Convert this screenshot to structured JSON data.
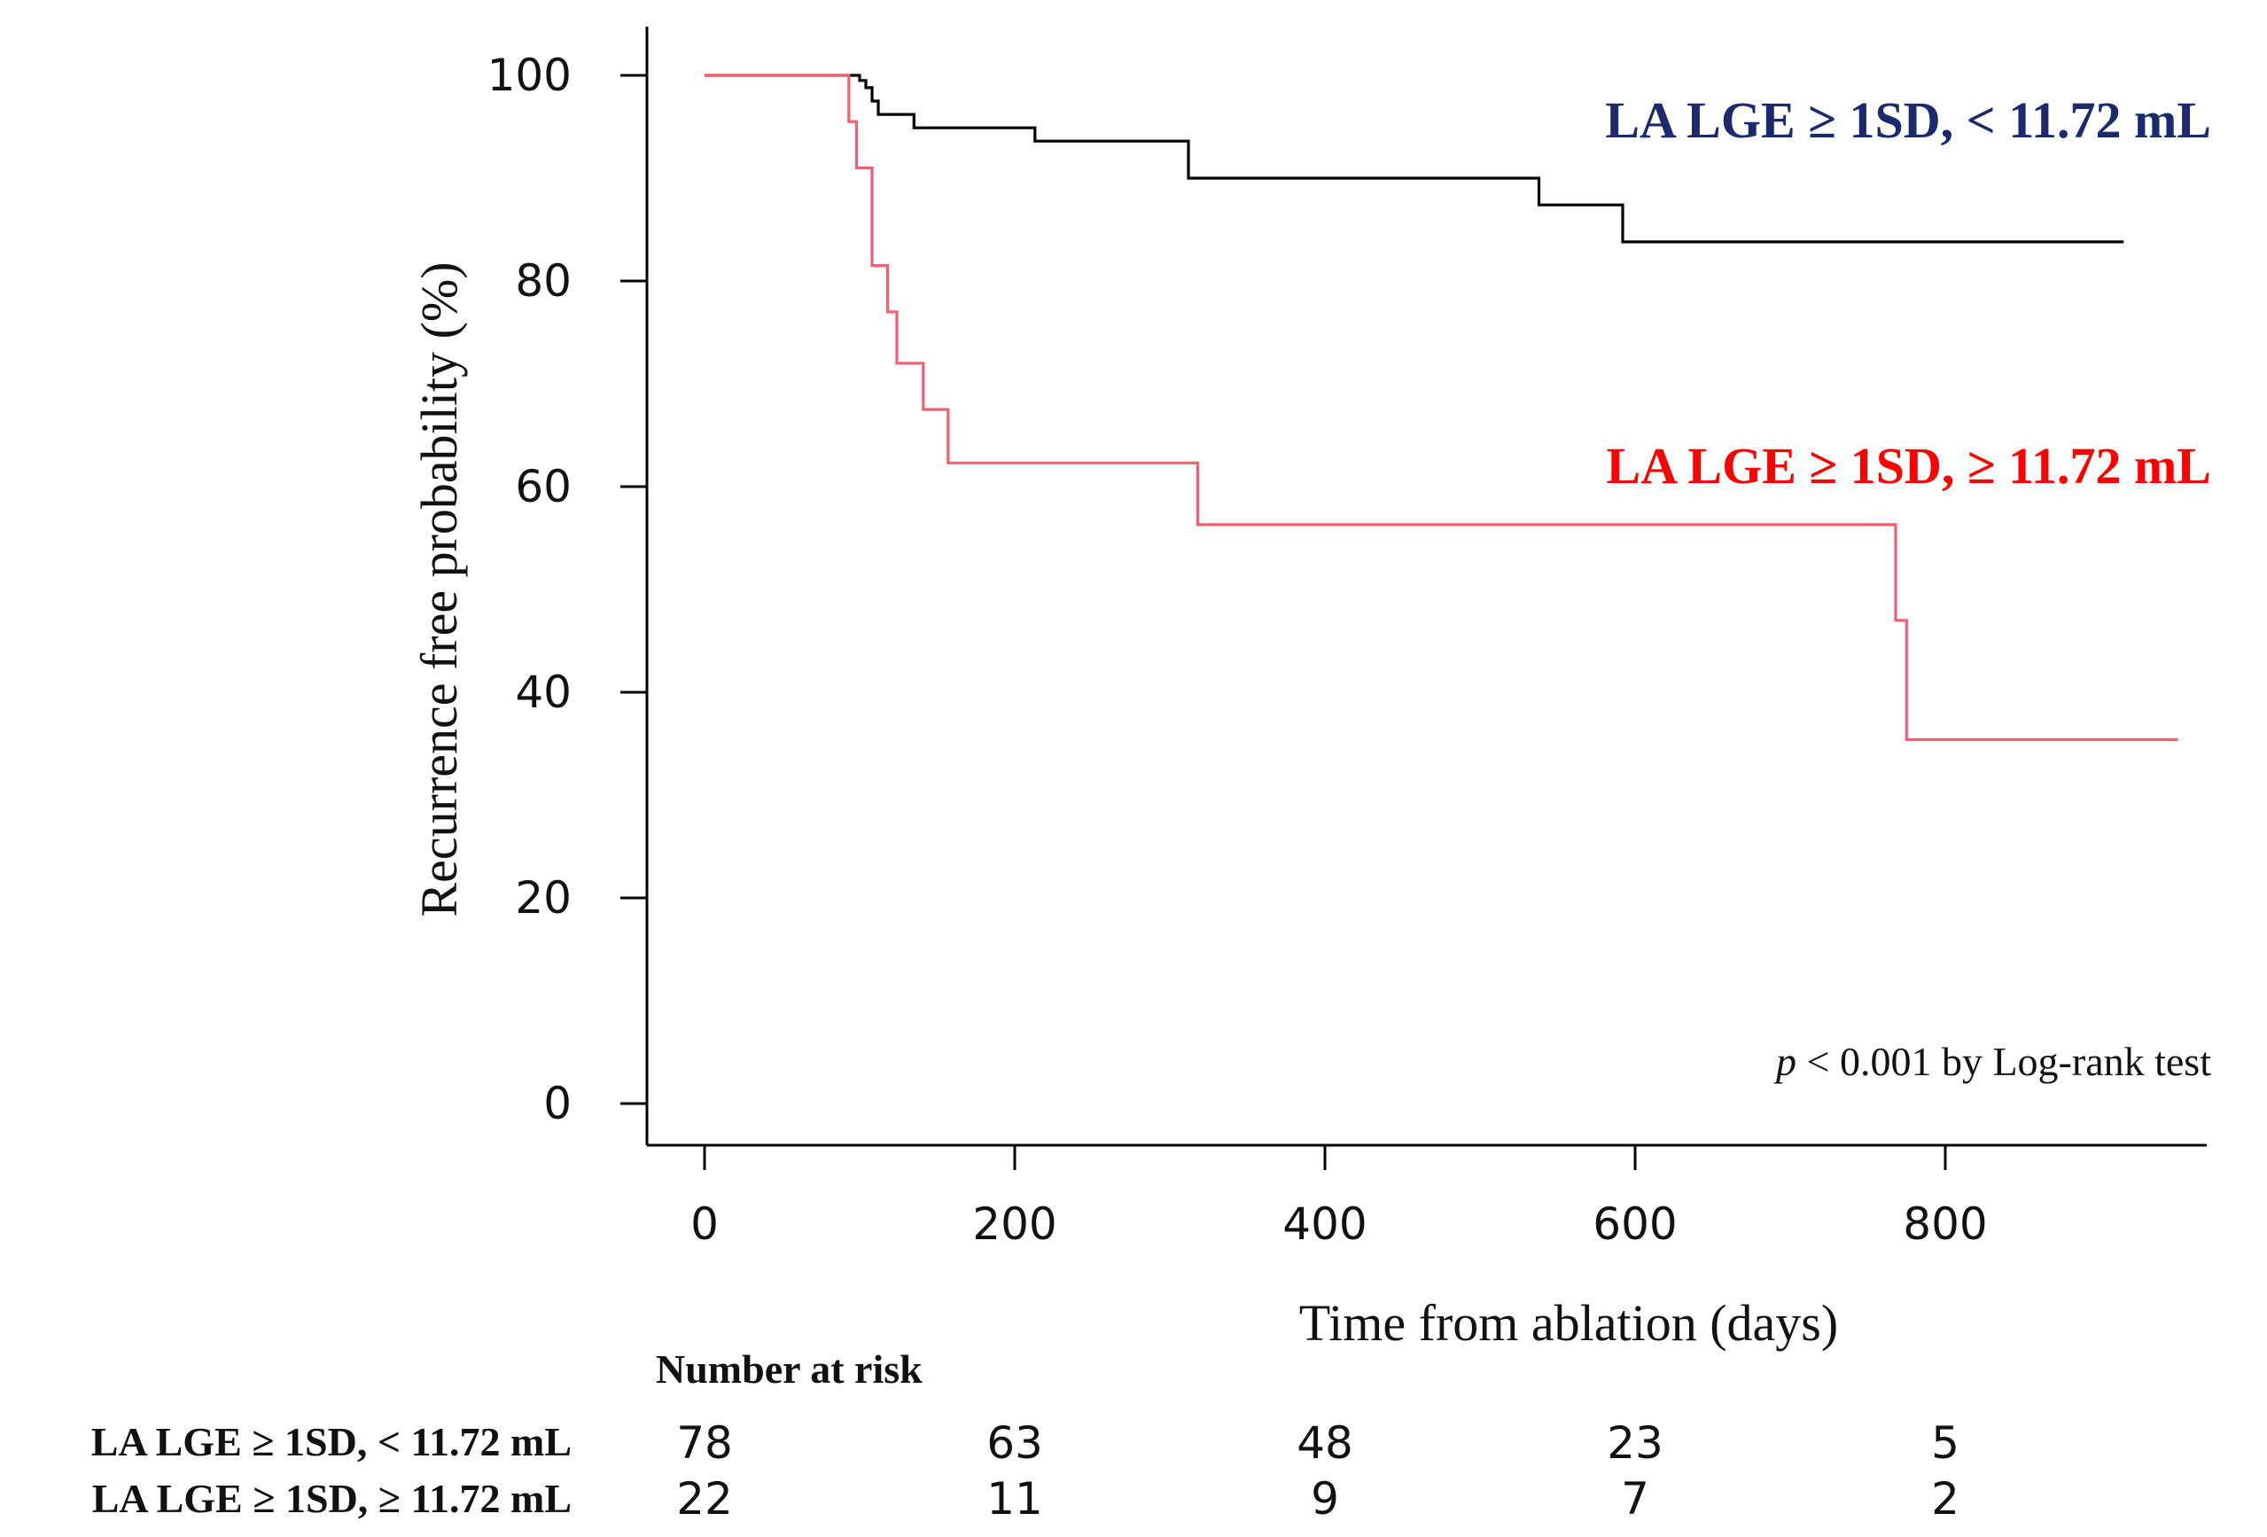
{
  "chart_data": {
    "type": "line",
    "subtype": "kaplan-meier",
    "title": "",
    "xlabel": "Time from ablation (days)",
    "ylabel": "Recurrence free probability (%)",
    "xlim": [
      0,
      950
    ],
    "ylim": [
      0,
      100
    ],
    "xticks": [
      0,
      200,
      400,
      600,
      800
    ],
    "yticks": [
      0,
      20,
      40,
      60,
      80,
      100
    ],
    "grid": false,
    "series": [
      {
        "name": "LA LGE ≥ 1SD, < 11.72 mL",
        "color": "#000000",
        "label_color": "#1a2a6c",
        "steps": [
          [
            0,
            100
          ],
          [
            100,
            100
          ],
          [
            100,
            99.5
          ],
          [
            104,
            99.5
          ],
          [
            104,
            98.8
          ],
          [
            108,
            98.8
          ],
          [
            108,
            97.5
          ],
          [
            112,
            97.5
          ],
          [
            112,
            96.2
          ],
          [
            135,
            96.2
          ],
          [
            135,
            94.9
          ],
          [
            213,
            94.9
          ],
          [
            213,
            93.6
          ],
          [
            312,
            93.6
          ],
          [
            312,
            90.0
          ],
          [
            538,
            90.0
          ],
          [
            538,
            87.4
          ],
          [
            592,
            87.4
          ],
          [
            592,
            83.8
          ],
          [
            915,
            83.8
          ]
        ]
      },
      {
        "name": "LA LGE ≥ 1SD, ≥ 11.72 mL",
        "color": "#f06070",
        "label_color": "#ff0000",
        "steps": [
          [
            0,
            100
          ],
          [
            93,
            100
          ],
          [
            93,
            95.5
          ],
          [
            98,
            95.5
          ],
          [
            98,
            91.0
          ],
          [
            108,
            91.0
          ],
          [
            108,
            81.5
          ],
          [
            118,
            81.5
          ],
          [
            118,
            77.0
          ],
          [
            124,
            77.0
          ],
          [
            124,
            72.0
          ],
          [
            141,
            72.0
          ],
          [
            141,
            67.5
          ],
          [
            157,
            67.5
          ],
          [
            157,
            62.3
          ],
          [
            318,
            62.3
          ],
          [
            318,
            56.3
          ],
          [
            768,
            56.3
          ],
          [
            768,
            47.0
          ],
          [
            775,
            47.0
          ],
          [
            775,
            35.4
          ],
          [
            950,
            35.4
          ]
        ]
      }
    ],
    "annotation": {
      "p_symbol": "p",
      "text": " < 0.001 by Log-rank test"
    },
    "risk_table": {
      "title": "Number at risk",
      "times": [
        0,
        200,
        400,
        600,
        800
      ],
      "rows": [
        {
          "label": "LA LGE ≥ 1SD, < 11.72 mL",
          "values": [
            "78",
            "63",
            "48",
            "23",
            "5"
          ]
        },
        {
          "label": "LA LGE ≥ 1SD, ≥ 11.72 mL",
          "values": [
            "22",
            "11",
            "9",
            "7",
            "2"
          ]
        }
      ]
    }
  }
}
